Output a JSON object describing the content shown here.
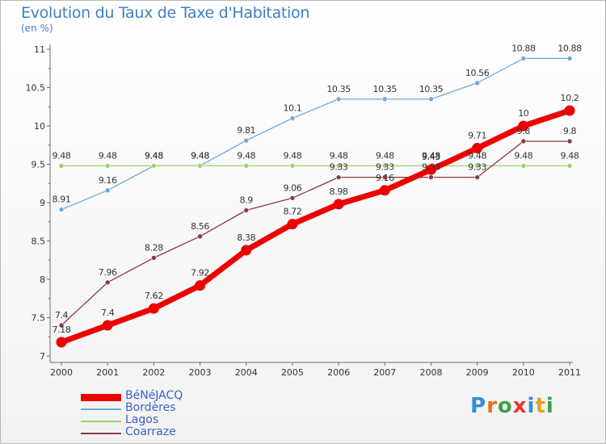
{
  "header": {
    "title": "Evolution du Taux de Taxe d'Habitation",
    "subtitle": "(en %)"
  },
  "logo": {
    "text": "Proxiti",
    "letters": [
      {
        "ch": "P",
        "color": "#2f8fd6"
      },
      {
        "ch": "r",
        "color": "#e8701c"
      },
      {
        "ch": "o",
        "color": "#3ba24a"
      },
      {
        "ch": "x",
        "color": "#e23a2e"
      },
      {
        "ch": "i",
        "color": "#2f8fd6"
      },
      {
        "ch": "t",
        "color": "#e8a21c"
      },
      {
        "ch": "i",
        "color": "#3ba24a"
      }
    ]
  },
  "chart_data": {
    "type": "line",
    "x": [
      "2000",
      "2001",
      "2002",
      "2003",
      "2004",
      "2005",
      "2006",
      "2007",
      "2008",
      "2009",
      "2010",
      "2011"
    ],
    "ylim": [
      7,
      11
    ],
    "yticks": [
      "7",
      "7.5",
      "8",
      "8.5",
      "9",
      "9.5",
      "10",
      "10.5",
      "11"
    ],
    "grid": false,
    "legend_position": "bottom-left",
    "series": [
      {
        "name": "BéNéJACQ",
        "color": "#ee0000",
        "values": [
          7.18,
          7.4,
          7.62,
          7.92,
          8.38,
          8.72,
          8.98,
          9.16,
          9.43,
          9.71,
          10,
          10.2
        ],
        "labels": [
          "7.18",
          "7.4",
          "7.62",
          "7.92",
          "8.38",
          "8.72",
          "8.98",
          "9.16",
          "9.43",
          "9.71",
          "10",
          "10.2"
        ]
      },
      {
        "name": "Bordères",
        "color": "#6fa8dc",
        "values": [
          8.91,
          9.16,
          9.48,
          9.48,
          9.81,
          10.1,
          10.35,
          10.35,
          10.35,
          10.56,
          10.88,
          10.88
        ],
        "labels": [
          "8.91",
          "9.16",
          "9.48",
          "9.48",
          "9.81",
          "10.1",
          "10.35",
          "10.35",
          "10.35",
          "10.56",
          "10.88",
          "10.88"
        ]
      },
      {
        "name": "Lagos",
        "color": "#9ad26a",
        "values": [
          9.48,
          9.48,
          9.48,
          9.48,
          9.48,
          9.48,
          9.48,
          9.48,
          9.48,
          9.48,
          9.48,
          9.48
        ],
        "labels": [
          "9.48",
          "9.48",
          "9.48",
          "9.48",
          "9.48",
          "9.48",
          "9.48",
          "9.48",
          "9.48",
          "9.48",
          "9.48",
          "9.48"
        ]
      },
      {
        "name": "Coarraze",
        "color": "#8b3a3a",
        "values": [
          7.4,
          7.96,
          8.28,
          8.56,
          8.9,
          9.06,
          9.33,
          9.33,
          9.33,
          9.33,
          9.8,
          9.8
        ],
        "labels": [
          "7.4",
          "7.96",
          "8.28",
          "8.56",
          "8.9",
          "9.06",
          "9.33",
          "9.33",
          "9.33",
          "9.33",
          "9.8",
          "9.8"
        ]
      }
    ]
  }
}
